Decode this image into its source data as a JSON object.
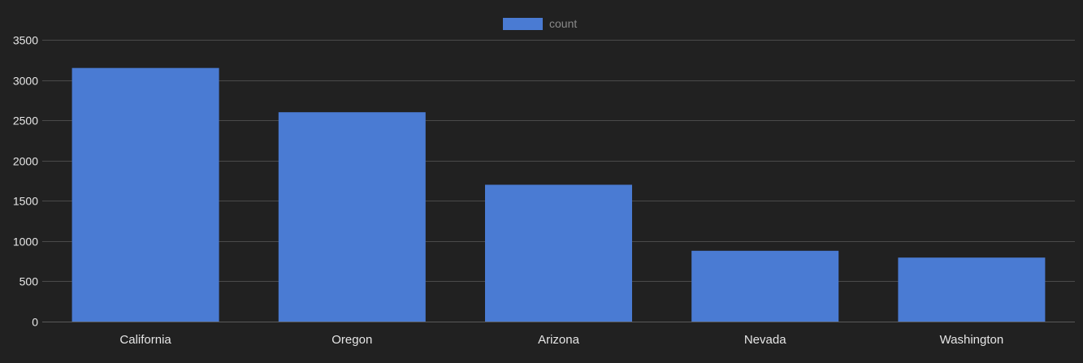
{
  "chart_data": {
    "type": "bar",
    "categories": [
      "California",
      "Oregon",
      "Arizona",
      "Nevada",
      "Washington"
    ],
    "series": [
      {
        "name": "count",
        "values": [
          3150,
          2600,
          1700,
          880,
          795
        ],
        "color": "#4a7bd3"
      }
    ],
    "yticks": [
      0,
      500,
      1000,
      1500,
      2000,
      2500,
      3000,
      3500
    ],
    "ylim": [
      0,
      3500
    ],
    "grid": true,
    "legend": "top-center",
    "title": "",
    "xlabel": "",
    "ylabel": ""
  },
  "colors": {
    "background": "#212121",
    "grid": "#4a4a4a",
    "text": "#e6e6e6",
    "legend_text": "#8a8a8a"
  }
}
